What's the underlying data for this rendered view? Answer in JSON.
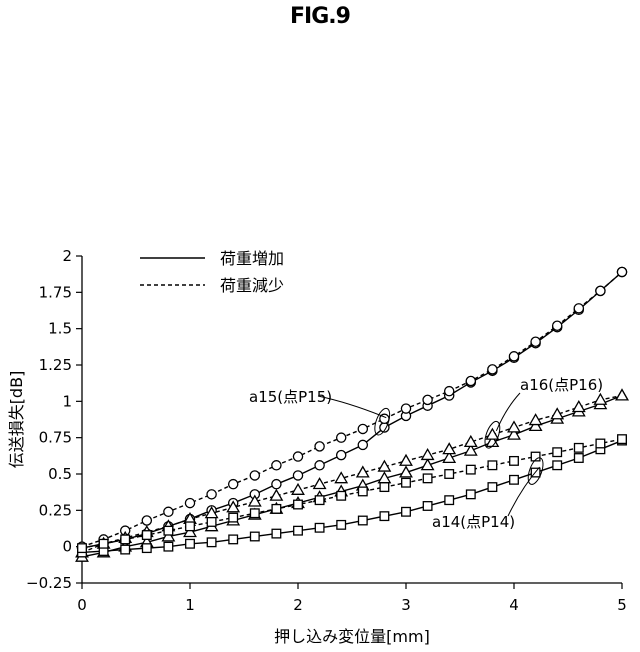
{
  "figure_label": "FIG.9",
  "chart_data": {
    "type": "line",
    "title": "",
    "xlabel": "押し込み変位量[mm]",
    "ylabel": "伝送損失[dB]",
    "xlim": [
      0,
      5
    ],
    "ylim": [
      -0.25,
      2
    ],
    "x_ticks": [
      0,
      1,
      2,
      3,
      4,
      5
    ],
    "x_tick_labels": [
      "0",
      "1",
      "2",
      "3",
      "4",
      "5"
    ],
    "y_ticks": [
      -0.25,
      0,
      0.25,
      0.5,
      0.75,
      1,
      1.25,
      1.5,
      1.75,
      2
    ],
    "y_tick_labels": [
      "−0.25",
      "0",
      "0.25",
      "0.5",
      "0.75",
      "1",
      "1.25",
      "1.5",
      "1.75",
      "2"
    ],
    "grid": false,
    "legend": {
      "placement": "top-left",
      "entries": [
        {
          "label": "荷重増加",
          "style": "solid"
        },
        {
          "label": "荷重減少",
          "style": "dashed"
        }
      ]
    },
    "series": [
      {
        "name": "荷重増加",
        "group": "a15",
        "marker": "circle",
        "style": "solid",
        "x": [
          0,
          0.2,
          0.4,
          0.6,
          0.8,
          1.0,
          1.2,
          1.4,
          1.6,
          1.8,
          2.0,
          2.2,
          2.4,
          2.6,
          2.8,
          3.0,
          3.2,
          3.4,
          3.6,
          3.8,
          4.0,
          4.2,
          4.4,
          4.6,
          4.8,
          5.0
        ],
        "y": [
          -0.01,
          0.02,
          0.05,
          0.09,
          0.14,
          0.19,
          0.25,
          0.3,
          0.36,
          0.43,
          0.49,
          0.56,
          0.63,
          0.7,
          0.82,
          0.9,
          0.97,
          1.04,
          1.13,
          1.21,
          1.3,
          1.4,
          1.51,
          1.63,
          1.76,
          1.89
        ]
      },
      {
        "name": "荷重減少",
        "group": "a15",
        "marker": "circle",
        "style": "dashed",
        "x": [
          0,
          0.2,
          0.4,
          0.6,
          0.8,
          1.0,
          1.2,
          1.4,
          1.6,
          1.8,
          2.0,
          2.2,
          2.4,
          2.6,
          2.8,
          3.0,
          3.2,
          3.4,
          3.6,
          3.8,
          4.0,
          4.2,
          4.4,
          4.6,
          4.8,
          5.0
        ],
        "y": [
          0.0,
          0.05,
          0.11,
          0.18,
          0.24,
          0.3,
          0.36,
          0.43,
          0.49,
          0.56,
          0.62,
          0.69,
          0.75,
          0.81,
          0.88,
          0.95,
          1.01,
          1.07,
          1.14,
          1.22,
          1.31,
          1.41,
          1.52,
          1.64,
          1.76,
          1.89
        ]
      },
      {
        "name": "荷重増加",
        "group": "a16",
        "marker": "triangle",
        "style": "solid",
        "x": [
          0,
          0.2,
          0.4,
          0.6,
          0.8,
          1.0,
          1.2,
          1.4,
          1.6,
          1.8,
          2.0,
          2.2,
          2.4,
          2.6,
          2.8,
          3.0,
          3.2,
          3.4,
          3.6,
          3.8,
          4.0,
          4.2,
          4.4,
          4.6,
          4.8,
          5.0
        ],
        "y": [
          -0.07,
          -0.04,
          0.0,
          0.03,
          0.07,
          0.1,
          0.14,
          0.18,
          0.22,
          0.26,
          0.3,
          0.34,
          0.38,
          0.42,
          0.47,
          0.51,
          0.56,
          0.61,
          0.66,
          0.72,
          0.77,
          0.83,
          0.88,
          0.93,
          0.98,
          1.04
        ]
      },
      {
        "name": "荷重減少",
        "group": "a16",
        "marker": "triangle",
        "style": "dashed",
        "x": [
          0,
          0.2,
          0.4,
          0.6,
          0.8,
          1.0,
          1.2,
          1.4,
          1.6,
          1.8,
          2.0,
          2.2,
          2.4,
          2.6,
          2.8,
          3.0,
          3.2,
          3.4,
          3.6,
          3.8,
          4.0,
          4.2,
          4.4,
          4.6,
          4.8,
          5.0
        ],
        "y": [
          -0.04,
          0.02,
          0.06,
          0.1,
          0.14,
          0.19,
          0.23,
          0.27,
          0.31,
          0.35,
          0.39,
          0.43,
          0.47,
          0.51,
          0.55,
          0.59,
          0.63,
          0.67,
          0.72,
          0.77,
          0.82,
          0.87,
          0.91,
          0.96,
          1.01,
          1.04
        ]
      },
      {
        "name": "荷重増加",
        "group": "a14",
        "marker": "square",
        "style": "solid",
        "x": [
          0,
          0.2,
          0.4,
          0.6,
          0.8,
          1.0,
          1.2,
          1.4,
          1.6,
          1.8,
          2.0,
          2.2,
          2.4,
          2.6,
          2.8,
          3.0,
          3.2,
          3.4,
          3.6,
          3.8,
          4.0,
          4.2,
          4.4,
          4.6,
          4.8,
          5.0
        ],
        "y": [
          -0.04,
          -0.03,
          -0.02,
          -0.01,
          0.0,
          0.02,
          0.03,
          0.05,
          0.07,
          0.09,
          0.11,
          0.13,
          0.15,
          0.18,
          0.21,
          0.24,
          0.28,
          0.32,
          0.36,
          0.41,
          0.46,
          0.51,
          0.56,
          0.61,
          0.67,
          0.73
        ]
      },
      {
        "name": "荷重減少",
        "group": "a14",
        "marker": "square",
        "style": "dashed",
        "x": [
          0,
          0.2,
          0.4,
          0.6,
          0.8,
          1.0,
          1.2,
          1.4,
          1.6,
          1.8,
          2.0,
          2.2,
          2.4,
          2.6,
          2.8,
          3.0,
          3.2,
          3.4,
          3.6,
          3.8,
          4.0,
          4.2,
          4.4,
          4.6,
          4.8,
          5.0
        ],
        "y": [
          -0.01,
          0.02,
          0.05,
          0.08,
          0.11,
          0.14,
          0.17,
          0.2,
          0.23,
          0.26,
          0.29,
          0.32,
          0.35,
          0.38,
          0.41,
          0.44,
          0.47,
          0.5,
          0.53,
          0.56,
          0.59,
          0.62,
          0.65,
          0.68,
          0.71,
          0.74
        ]
      }
    ],
    "annotations": [
      {
        "text": "a15(点P15)",
        "target_x": 2.78,
        "target_y": 0.86
      },
      {
        "text": "a16(点P16)",
        "target_x": 3.8,
        "target_y": 0.77
      },
      {
        "text": "a14(点P14)",
        "target_x": 4.2,
        "target_y": 0.52
      }
    ]
  }
}
